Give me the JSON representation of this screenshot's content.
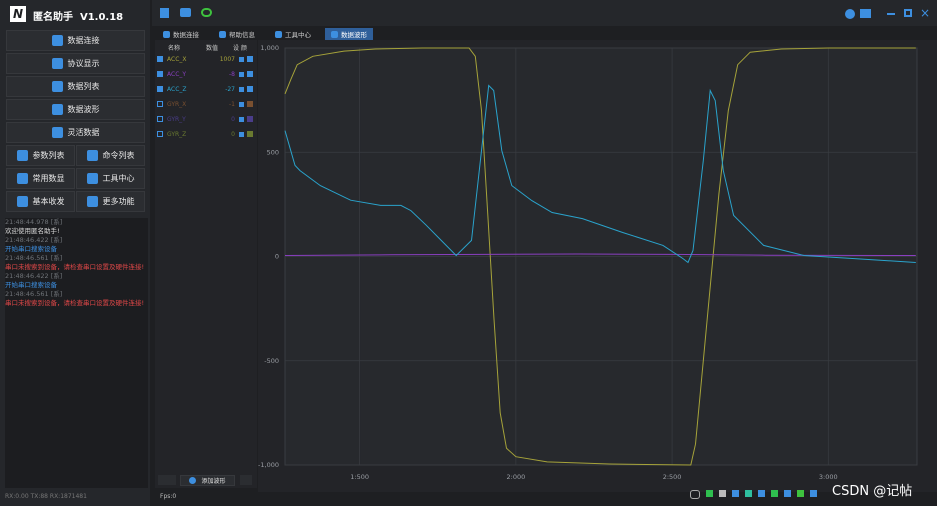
{
  "app": {
    "title": "匿名助手",
    "version": "V1.0.18"
  },
  "menu": [
    "数据连接",
    "协议显示",
    "数据列表",
    "数据波形",
    "灵活数据"
  ],
  "menu_pairs": [
    [
      "参数列表",
      "命令列表"
    ],
    [
      "常用数显",
      "工具中心"
    ],
    [
      "基本收发",
      "更多功能"
    ]
  ],
  "log": [
    {
      "text": "21:48:44.978 [系]",
      "color": "#6f7378"
    },
    {
      "text": "欢迎使用匿名助手!",
      "color": "#d8d8d8"
    },
    {
      "text": "21:48:46.422 [系]",
      "color": "#6f7378"
    },
    {
      "text": "开始串口搜索设备",
      "color": "#3d8fe0"
    },
    {
      "text": "21:48:46.561 [系]",
      "color": "#6f7378"
    },
    {
      "text": "串口未搜索到设备，请检查串口设置及硬件连接!",
      "color": "#e04848"
    },
    {
      "text": "21:48:46.422 [系]",
      "color": "#6f7378"
    },
    {
      "text": "开始串口搜索设备",
      "color": "#3d8fe0"
    },
    {
      "text": "21:48:46.561 [系]",
      "color": "#6f7378"
    },
    {
      "text": "串口未搜索到设备，请检查串口设置及硬件连接!",
      "color": "#e04848"
    }
  ],
  "status": "RX:0.00 TX:88 RX:1871481",
  "tabs": [
    "数据连接",
    "帮助信息",
    "工具中心",
    "数据波形"
  ],
  "active_tab": 3,
  "channels": {
    "headers": [
      "名称",
      "数值",
      "设 颜"
    ],
    "rows": [
      {
        "name": "ACC_X",
        "value": 1007,
        "color": "#a6a33a",
        "checked": true
      },
      {
        "name": "ACC_Y",
        "value": -8,
        "color": "#8a3fc0",
        "checked": true
      },
      {
        "name": "ACC_Z",
        "value": -27,
        "color": "#2aa3cc",
        "checked": true
      },
      {
        "name": "GYR_X",
        "value": -1,
        "color": "#7a5030",
        "checked": false
      },
      {
        "name": "GYR_Y",
        "value": 0,
        "color": "#4a3d8a",
        "checked": false
      },
      {
        "name": "GYR_Z",
        "value": 0,
        "color": "#6a7a30",
        "checked": false
      }
    ]
  },
  "add_button": "添加波形",
  "fps": "Fps:0",
  "watermark": "CSDN @记帖",
  "chart_data": {
    "type": "line",
    "grid": true,
    "xlim": [
      1261,
      3284
    ],
    "ylim": [
      -1000,
      1000
    ],
    "xticks": [
      {
        "value": 1500,
        "label": "1:500"
      },
      {
        "value": 2000,
        "label": "2:000"
      },
      {
        "value": 2500,
        "label": "2:500"
      },
      {
        "value": 3000,
        "label": "3:000"
      }
    ],
    "yticks": [
      {
        "value": 1000,
        "label": "1,000"
      },
      500,
      0,
      -500,
      {
        "value": -1000,
        "label": "-1,000"
      }
    ],
    "series": [
      {
        "color": "#a6a33a",
        "x": [
          1261,
          1280,
          1300,
          1350,
          1450,
          1550,
          1700,
          1850,
          1870,
          1890,
          1910,
          1930,
          1950,
          1970,
          2000,
          2100,
          2300,
          2560,
          2575,
          2600,
          2625,
          2650,
          2680,
          2710,
          2750,
          2850,
          3000,
          3280
        ],
        "values": [
          780,
          850,
          920,
          960,
          985,
          995,
          1000,
          1000,
          960,
          700,
          200,
          -300,
          -750,
          -920,
          -960,
          -985,
          -995,
          -1000,
          -900,
          -500,
          -100,
          300,
          700,
          920,
          980,
          995,
          1000,
          1000
        ]
      },
      {
        "color": "#8a3fc0",
        "x": [
          1261,
          1600,
          1900,
          2200,
          2500,
          2800,
          3280
        ],
        "values": [
          5,
          8,
          10,
          12,
          10,
          6,
          5
        ]
      },
      {
        "color": "#2aa3cc",
        "x": [
          1261,
          1293,
          1309,
          1374,
          1471,
          1567,
          1632,
          1664,
          1713,
          1761,
          1809,
          1858,
          1890,
          1913,
          1929,
          1955,
          1987,
          2051,
          2116,
          2213,
          2342,
          2471,
          2535,
          2551,
          2567,
          2600,
          2622,
          2638,
          2664,
          2697,
          2793,
          2922,
          3084,
          3280
        ],
        "values": [
          604,
          437,
          412,
          340,
          270,
          245,
          245,
          220,
          150,
          77,
          5,
          77,
          508,
          820,
          796,
          508,
          340,
          268,
          211,
          182,
          115,
          53,
          -10,
          -29,
          29,
          460,
          796,
          748,
          412,
          197,
          53,
          5,
          -10,
          -29
        ]
      }
    ]
  }
}
